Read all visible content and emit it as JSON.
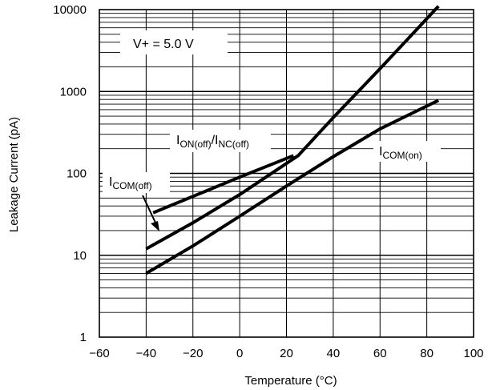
{
  "chart_data": {
    "type": "line",
    "title": "",
    "xlabel": "Temperature (°C)",
    "ylabel": "Leakage Current (pA)",
    "xlim": [
      -60,
      100
    ],
    "ylim": [
      1,
      10000
    ],
    "yscale": "log",
    "xticks": [
      "−60",
      "−40",
      "−20",
      "0",
      "20",
      "40",
      "60",
      "80",
      "100"
    ],
    "yticks": [
      "1",
      "10",
      "100",
      "1000",
      "10000"
    ],
    "grid": true,
    "series": [
      {
        "name": "I_ON(off)/I_NC(off)",
        "x": [
          -40,
          -20,
          0,
          25,
          40,
          60,
          85
        ],
        "y": [
          12,
          25,
          55,
          165,
          480,
          1900,
          11000
        ]
      },
      {
        "name": "I_COM(off)",
        "x": [
          -37,
          0,
          23
        ],
        "y": [
          33,
          90,
          165
        ]
      },
      {
        "name": "I_COM(on)",
        "x": [
          -40,
          -20,
          0,
          20,
          40,
          60,
          85
        ],
        "y": [
          6,
          13,
          30,
          70,
          160,
          350,
          780
        ]
      }
    ],
    "annotations": {
      "vplus": "V+ = 5.0 V",
      "on_main": "I",
      "on_sub1": "ON(off)",
      "on_sep": "/I",
      "on_sub2": "NC(off)",
      "comoff_main": "I",
      "comoff_sub": "COM(off)",
      "comon_main": "I",
      "comon_sub": "COM(on)"
    }
  }
}
